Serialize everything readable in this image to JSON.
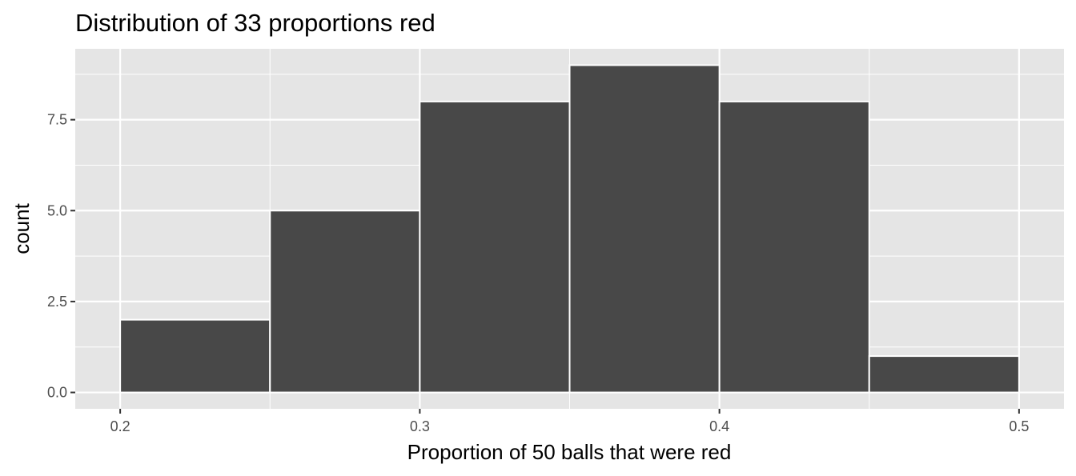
{
  "chart_data": {
    "type": "bar",
    "title": "Distribution of 33 proportions red",
    "xlabel": "Proportion of 50 balls that were red",
    "ylabel": "count",
    "bins": [
      {
        "x0": 0.2,
        "x1": 0.25,
        "count": 2
      },
      {
        "x0": 0.25,
        "x1": 0.3,
        "count": 5
      },
      {
        "x0": 0.3,
        "x1": 0.35,
        "count": 8
      },
      {
        "x0": 0.35,
        "x1": 0.4,
        "count": 9
      },
      {
        "x0": 0.4,
        "x1": 0.45,
        "count": 8
      },
      {
        "x0": 0.45,
        "x1": 0.5,
        "count": 1
      }
    ],
    "xlim": [
      0.185,
      0.515
    ],
    "ylim": [
      -0.45,
      9.45
    ],
    "x_ticks": [
      0.2,
      0.3,
      0.4,
      0.5
    ],
    "x_tick_labels": [
      "0.2",
      "0.3",
      "0.4",
      "0.5"
    ],
    "x_minor_ticks": [
      0.25,
      0.35,
      0.45
    ],
    "y_ticks": [
      0.0,
      2.5,
      5.0,
      7.5
    ],
    "y_tick_labels": [
      "0.0",
      "2.5",
      "5.0",
      "7.5"
    ],
    "y_minor_ticks": [
      1.25,
      3.75,
      6.25,
      8.75
    ],
    "grid": true,
    "colors": {
      "bar_fill": "#484848",
      "bar_outline": "#ffffff",
      "panel_background": "#e5e5e5",
      "grid": "#ffffff",
      "tick_label": "#4d4d4d"
    }
  }
}
